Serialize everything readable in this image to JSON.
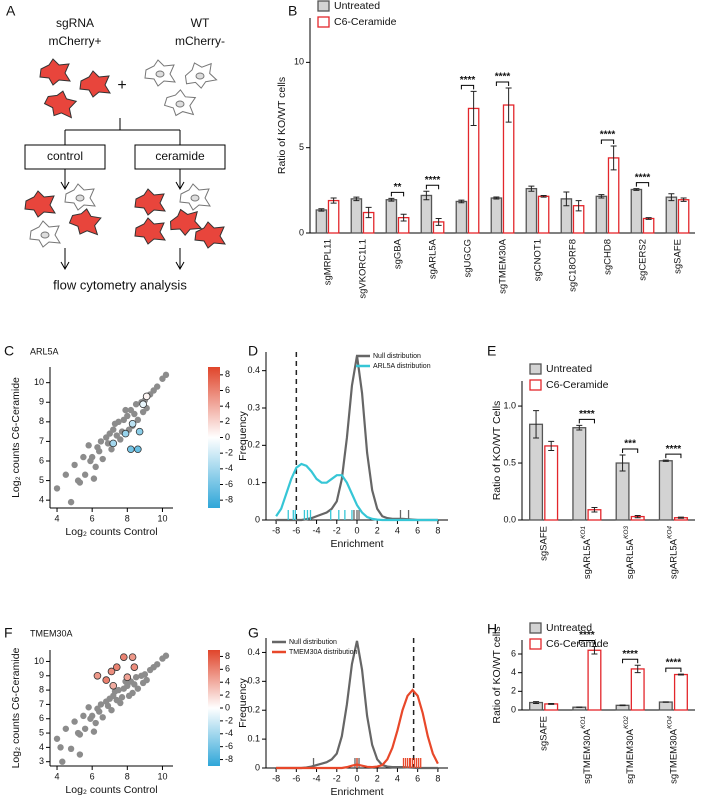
{
  "diagram": {
    "panel": "A",
    "left_label": [
      "sgRNA",
      "mCherry+"
    ],
    "right_label": [
      "WT",
      "mCherry-"
    ],
    "plus": "+",
    "conditions": [
      "control",
      "ceramide"
    ],
    "readout": "flow cytometry analysis"
  },
  "chart_data": [
    {
      "type": "bar",
      "panel": "B",
      "ylabel": "Ratio of KO/WT cells",
      "legend": "upper left",
      "categories": [
        "sgMRPL11",
        "sgVKORC1L1",
        "sgGBA",
        "sgARL5A",
        "sgUGCG",
        "sgTMEM30A",
        "sgCNOT1",
        "sgC18ORF8",
        "sgCHD8",
        "sgCERS2",
        "sgSAFE"
      ],
      "series": [
        {
          "name": "Untreated",
          "color": "#555555",
          "fill": "#d3d3d3",
          "values": [
            1.35,
            2.0,
            1.95,
            2.2,
            1.85,
            2.05,
            2.6,
            2.0,
            2.15,
            2.55,
            2.1
          ],
          "errors": [
            0.07,
            0.1,
            0.08,
            0.25,
            0.08,
            0.06,
            0.15,
            0.4,
            0.1,
            0.05,
            0.2
          ]
        },
        {
          "name": "C6-Ceramide",
          "color": "#e3262b",
          "fill": "#ffffff",
          "values": [
            1.9,
            1.2,
            0.9,
            0.65,
            7.3,
            7.5,
            2.15,
            1.6,
            4.4,
            0.85,
            1.95
          ],
          "errors": [
            0.15,
            0.3,
            0.2,
            0.2,
            1.0,
            1.0,
            0.05,
            0.3,
            0.7,
            0.05,
            0.1
          ]
        }
      ],
      "significance": [
        null,
        null,
        "**",
        "****",
        "****",
        "****",
        null,
        null,
        "****",
        "****",
        null
      ],
      "ylim": [
        0,
        12.6
      ],
      "yticks": [
        0,
        5,
        10
      ]
    },
    {
      "type": "scatter",
      "panel": "C",
      "title": "ARL5A",
      "xlabel": "Log₂ counts Control",
      "ylabel": "Log₂ counts C6-Ceramide",
      "xlim": [
        3.6,
        10.6
      ],
      "xticks": [
        4,
        6,
        8,
        10
      ],
      "ylim": [
        3.6,
        10.8
      ],
      "yticks": [
        4,
        5,
        6,
        7,
        8,
        9,
        10
      ],
      "point_color": "#8c8c8c",
      "points": {
        "x": [
          4.0,
          4.5,
          4.8,
          5.0,
          5.3,
          5.5,
          5.6,
          5.8,
          6.0,
          6.1,
          6.3,
          6.5,
          6.6,
          6.8,
          7.0,
          7.1,
          7.2,
          7.4,
          7.5,
          7.6,
          7.8,
          8.0,
          8.1,
          8.2,
          8.4,
          8.5,
          8.6,
          8.8,
          9.0,
          9.1,
          9.3,
          9.5,
          9.7,
          10.0,
          10.2,
          6.2,
          6.9,
          7.3,
          7.7,
          8.3,
          8.9,
          5.2,
          5.9,
          6.4,
          7.9
        ],
        "y": [
          4.6,
          5.3,
          3.9,
          5.8,
          4.9,
          6.2,
          5.3,
          6.8,
          6.2,
          5.1,
          6.7,
          7.0,
          6.1,
          7.2,
          7.4,
          6.6,
          7.6,
          7.3,
          8.0,
          7.1,
          8.1,
          8.3,
          7.6,
          8.6,
          8.4,
          8.9,
          8.1,
          9.0,
          9.1,
          8.7,
          9.4,
          9.6,
          9.8,
          10.2,
          10.4,
          5.7,
          6.9,
          7.9,
          7.5,
          7.8,
          8.5,
          5.0,
          6.0,
          6.5,
          8.6
        ]
      },
      "hits": {
        "x": [
          8.2,
          8.6,
          7.9,
          8.3,
          8.7,
          7.2,
          8.9,
          9.1
        ],
        "y": [
          6.6,
          6.6,
          7.4,
          7.9,
          7.5,
          6.9,
          8.9,
          9.3
        ],
        "enrichment": [
          -6,
          -6.5,
          -4.5,
          -3,
          -5,
          -4,
          -1,
          0.5
        ]
      },
      "colorbar": {
        "clim": [
          -9,
          9
        ],
        "ticks": [
          -8,
          -6,
          -4,
          -2,
          0,
          2,
          4,
          6,
          8
        ],
        "colors": [
          "#2fa6d8",
          "#ffffff",
          "#e0452b"
        ]
      }
    },
    {
      "type": "density",
      "panel": "D",
      "xlabel": "Enrichment",
      "ylabel": "Frequency",
      "legend": "upper right",
      "xlim": [
        -9,
        9
      ],
      "xticks": [
        -8,
        -6,
        -4,
        -2,
        0,
        2,
        4,
        6,
        8
      ],
      "ylim": [
        0,
        0.45
      ],
      "yticks": [
        0.0,
        0.1,
        0.2,
        0.3,
        0.4
      ],
      "reference_line": -6,
      "x": [
        -8,
        -7.5,
        -7,
        -6.5,
        -6,
        -5.5,
        -5,
        -4.5,
        -4,
        -3.5,
        -3,
        -2.5,
        -2,
        -1.5,
        -1,
        -0.5,
        0,
        0.5,
        1,
        1.5,
        2,
        2.5,
        3,
        3.5,
        4,
        4.5,
        5,
        5.5,
        6,
        6.5,
        7,
        7.5,
        8
      ],
      "series": [
        {
          "name": "Null distribution",
          "color": "#666666",
          "values": [
            0,
            0,
            0,
            0,
            0,
            0,
            0.002,
            0.005,
            0.01,
            0.015,
            0.02,
            0.03,
            0.05,
            0.11,
            0.22,
            0.36,
            0.44,
            0.34,
            0.18,
            0.08,
            0.03,
            0.01,
            0.005,
            0.003,
            0.003,
            0.003,
            0.002,
            0.001,
            0,
            0,
            0,
            0,
            0
          ],
          "rug": [
            -0.3,
            0,
            0.2,
            4.3,
            5.1
          ]
        },
        {
          "name": "ARL5A distribution",
          "color": "#36c6d6",
          "values": [
            0.01,
            0.03,
            0.07,
            0.11,
            0.14,
            0.15,
            0.145,
            0.13,
            0.11,
            0.1,
            0.1,
            0.11,
            0.12,
            0.12,
            0.1,
            0.07,
            0.04,
            0.02,
            0.008,
            0.003,
            0.001,
            0,
            0,
            0,
            0,
            0,
            0,
            0,
            0,
            0,
            0,
            0,
            0
          ],
          "rug": [
            -6.8,
            -6.3,
            -6.1,
            -5.2,
            -4.9,
            -4.6,
            -2.6,
            -1.8,
            -1.2,
            -0.5
          ]
        }
      ]
    },
    {
      "type": "bar",
      "panel": "E",
      "ylabel": "Ratio of KO/WT Cells",
      "legend": "upper left",
      "categories": [
        "sgSAFE",
        "sgARL5A",
        "sgARL5A",
        "sgARL5A"
      ],
      "superscripts": [
        null,
        "KO1",
        "KO3",
        "KO4"
      ],
      "series": [
        {
          "name": "Untreated",
          "color": "#555555",
          "fill": "#d3d3d3",
          "values": [
            0.84,
            0.81,
            0.5,
            0.52
          ],
          "errors": [
            0.12,
            0.02,
            0.07,
            0.005
          ]
        },
        {
          "name": "C6-Ceramide",
          "color": "#e3262b",
          "fill": "#ffffff",
          "values": [
            0.65,
            0.09,
            0.03,
            0.02
          ],
          "errors": [
            0.04,
            0.02,
            0.01,
            0.005
          ]
        }
      ],
      "significance": [
        null,
        "****",
        "***",
        "****"
      ],
      "ylim": [
        0,
        1.22
      ],
      "yticks": [
        {
          "value": 0,
          "label": "0.0"
        },
        {
          "value": 0.5,
          "label": "0.5"
        },
        {
          "value": 1,
          "label": "1.0"
        }
      ]
    },
    {
      "type": "scatter",
      "panel": "F",
      "title": "TMEM30A",
      "xlabel": "Log₂ counts Control",
      "ylabel": "Log₂ counts C6-Ceramide",
      "xlim": [
        3.6,
        10.6
      ],
      "xticks": [
        4,
        6,
        8,
        10
      ],
      "ylim": [
        2.7,
        10.8
      ],
      "yticks": [
        3,
        4,
        5,
        6,
        7,
        8,
        9,
        10
      ],
      "point_color": "#8c8c8c",
      "points": {
        "x": [
          4.0,
          4.5,
          4.8,
          5.0,
          5.3,
          5.5,
          5.6,
          5.8,
          6.0,
          6.1,
          6.3,
          6.5,
          6.6,
          6.8,
          7.0,
          7.1,
          7.2,
          7.4,
          7.5,
          7.6,
          7.8,
          8.0,
          8.1,
          8.2,
          8.4,
          8.5,
          8.6,
          8.8,
          9.0,
          9.1,
          9.3,
          9.5,
          9.7,
          10.0,
          10.2,
          6.2,
          6.9,
          7.3,
          7.7,
          8.3,
          8.9,
          5.2,
          5.9,
          6.4,
          7.9,
          4.3,
          5.3,
          4.2
        ],
        "y": [
          4.6,
          5.3,
          3.9,
          5.8,
          4.9,
          6.2,
          5.3,
          6.8,
          6.2,
          5.1,
          6.7,
          7.0,
          6.1,
          7.2,
          7.4,
          6.6,
          7.6,
          7.3,
          8.0,
          7.1,
          8.1,
          8.3,
          7.6,
          8.6,
          8.4,
          8.9,
          8.1,
          9.0,
          9.1,
          8.7,
          9.4,
          9.6,
          9.8,
          10.2,
          10.4,
          5.7,
          6.9,
          7.9,
          7.5,
          7.8,
          8.5,
          5.0,
          6.0,
          6.5,
          8.6,
          3.0,
          3.5,
          4.0
        ]
      },
      "hits": {
        "x": [
          6.3,
          7.1,
          7.4,
          7.8,
          8.3,
          8.0,
          6.8,
          7.2,
          8.4
        ],
        "y": [
          9.0,
          9.3,
          9.6,
          10.3,
          10.3,
          8.9,
          8.7,
          8.3,
          9.6
        ],
        "enrichment": [
          5,
          5.5,
          6,
          6,
          5,
          4.5,
          6.2,
          4,
          5.5
        ]
      },
      "colorbar": {
        "clim": [
          -9,
          9
        ],
        "ticks": [
          -8,
          -6,
          -4,
          -2,
          0,
          2,
          4,
          6,
          8
        ],
        "colors": [
          "#2fa6d8",
          "#ffffff",
          "#e0452b"
        ]
      }
    },
    {
      "type": "density",
      "panel": "G",
      "xlabel": "Enrichment",
      "ylabel": "Frequency",
      "legend": "upper left",
      "xlim": [
        -9,
        9
      ],
      "xticks": [
        -8,
        -6,
        -4,
        -2,
        0,
        2,
        4,
        6,
        8
      ],
      "ylim": [
        0,
        0.45
      ],
      "yticks": [
        0.0,
        0.1,
        0.2,
        0.3,
        0.4
      ],
      "reference_line": 5.6,
      "x": [
        -8,
        -7.5,
        -7,
        -6.5,
        -6,
        -5.5,
        -5,
        -4.5,
        -4,
        -3.5,
        -3,
        -2.5,
        -2,
        -1.5,
        -1,
        -0.5,
        0,
        0.5,
        1,
        1.5,
        2,
        2.5,
        3,
        3.5,
        4,
        4.5,
        5,
        5.5,
        6,
        6.5,
        7,
        7.5,
        8
      ],
      "series": [
        {
          "name": "Null distribution",
          "color": "#666666",
          "values": [
            0,
            0,
            0,
            0,
            0,
            0,
            0.002,
            0.005,
            0.01,
            0.015,
            0.02,
            0.03,
            0.05,
            0.11,
            0.22,
            0.36,
            0.44,
            0.34,
            0.18,
            0.08,
            0.03,
            0.01,
            0.005,
            0.003,
            0.003,
            0.003,
            0.002,
            0.001,
            0,
            0,
            0,
            0,
            0
          ],
          "rug": [
            -4.3,
            -0.2,
            0,
            0.2
          ]
        },
        {
          "name": "TMEM30A distribution",
          "color": "#e8482a",
          "values": [
            0,
            0,
            0,
            0,
            0,
            0,
            0,
            0,
            0,
            0,
            0,
            0,
            0,
            0,
            0.003,
            0.008,
            0.012,
            0.008,
            0.004,
            0.003,
            0.005,
            0.01,
            0.03,
            0.07,
            0.13,
            0.2,
            0.25,
            0.27,
            0.25,
            0.19,
            0.11,
            0.05,
            0.015
          ],
          "rug": [
            0,
            4.6,
            4.8,
            5.0,
            5.2,
            5.3,
            5.5,
            5.7,
            5.9,
            6.1,
            6.3
          ]
        }
      ]
    },
    {
      "type": "bar",
      "panel": "H",
      "ylabel": "Ratio of KO/WT cells",
      "legend": "upper left",
      "categories": [
        "sgSAFE",
        "sgTMEM30A",
        "sgTMEM30A",
        "sgTMEM30A"
      ],
      "superscripts": [
        null,
        "KO1",
        "KO2",
        "KO4"
      ],
      "series": [
        {
          "name": "Untreated",
          "color": "#555555",
          "fill": "#d3d3d3",
          "values": [
            0.8,
            0.3,
            0.5,
            0.85
          ],
          "errors": [
            0.1,
            0.02,
            0.03,
            0.02
          ]
        },
        {
          "name": "C6-Ceramide",
          "color": "#e3262b",
          "fill": "#ffffff",
          "values": [
            0.65,
            6.4,
            4.4,
            3.8
          ],
          "errors": [
            0.05,
            0.4,
            0.4,
            0.05
          ]
        }
      ],
      "significance": [
        null,
        "****",
        "****",
        "****"
      ],
      "ylim": [
        0,
        7.5
      ],
      "yticks": [
        0,
        2,
        4,
        6
      ]
    }
  ]
}
